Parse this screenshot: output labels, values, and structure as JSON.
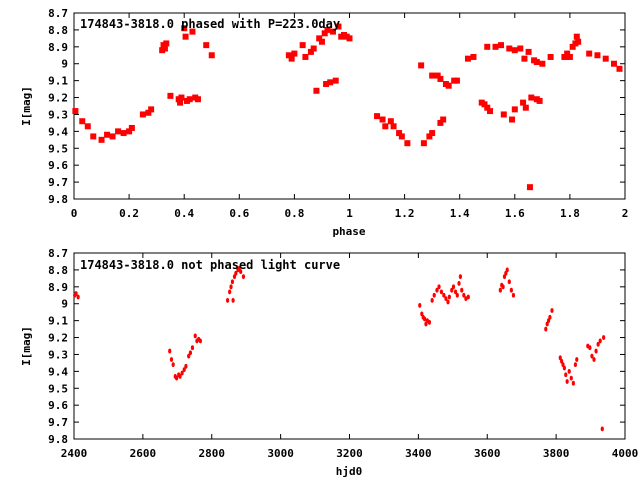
{
  "chart_data": [
    {
      "type": "scatter",
      "title": "174843-3818.0 phased with P=223.0day",
      "xlabel": "phase",
      "ylabel": "I[mag]",
      "xlim": [
        0,
        2
      ],
      "ylim": [
        9.8,
        8.7
      ],
      "y_inverted": true,
      "grid": false,
      "marker": "square",
      "color": "#ff0000",
      "xticks": [
        "0",
        "0.2",
        "0.4",
        "0.6",
        "0.8",
        "1",
        "1.2",
        "1.4",
        "1.6",
        "1.8",
        "2"
      ],
      "yticks": [
        "8.7",
        "8.8",
        "8.9",
        "9",
        "9.1",
        "9.2",
        "9.3",
        "9.4",
        "9.5",
        "9.6",
        "9.7",
        "9.8"
      ],
      "series": [
        {
          "points": [
            [
              0.005,
              9.28
            ],
            [
              0.03,
              9.34
            ],
            [
              0.05,
              9.37
            ],
            [
              0.07,
              9.43
            ],
            [
              0.1,
              9.45
            ],
            [
              0.12,
              9.42
            ],
            [
              0.14,
              9.43
            ],
            [
              0.16,
              9.4
            ],
            [
              0.18,
              9.41
            ],
            [
              0.2,
              9.4
            ],
            [
              0.21,
              9.38
            ],
            [
              0.25,
              9.3
            ],
            [
              0.27,
              9.29
            ],
            [
              0.28,
              9.27
            ],
            [
              0.32,
              8.92
            ],
            [
              0.325,
              8.89
            ],
            [
              0.33,
              8.91
            ],
            [
              0.335,
              8.88
            ],
            [
              0.35,
              9.19
            ],
            [
              0.38,
              9.21
            ],
            [
              0.385,
              9.23
            ],
            [
              0.39,
              9.2
            ],
            [
              0.4,
              8.79
            ],
            [
              0.405,
              8.84
            ],
            [
              0.41,
              9.22
            ],
            [
              0.42,
              9.21
            ],
            [
              0.43,
              8.81
            ],
            [
              0.44,
              9.2
            ],
            [
              0.45,
              9.21
            ],
            [
              0.48,
              8.89
            ],
            [
              0.5,
              8.95
            ],
            [
              0.78,
              8.95
            ],
            [
              0.79,
              8.97
            ],
            [
              0.8,
              8.94
            ],
            [
              0.83,
              8.89
            ],
            [
              0.84,
              8.96
            ],
            [
              0.86,
              8.93
            ],
            [
              0.87,
              8.91
            ],
            [
              0.88,
              9.16
            ],
            [
              0.89,
              8.85
            ],
            [
              0.9,
              8.87
            ],
            [
              0.91,
              8.82
            ],
            [
              0.915,
              9.12
            ],
            [
              0.92,
              8.8
            ],
            [
              0.93,
              9.11
            ],
            [
              0.94,
              8.81
            ],
            [
              0.95,
              9.1
            ],
            [
              0.96,
              8.78
            ],
            [
              0.97,
              8.84
            ],
            [
              0.98,
              8.83
            ],
            [
              0.99,
              8.84
            ],
            [
              1.0,
              8.85
            ],
            [
              1.1,
              9.31
            ],
            [
              1.12,
              9.33
            ],
            [
              1.13,
              9.37
            ],
            [
              1.15,
              9.34
            ],
            [
              1.16,
              9.37
            ],
            [
              1.18,
              9.41
            ],
            [
              1.19,
              9.43
            ],
            [
              1.21,
              9.47
            ],
            [
              1.26,
              9.01
            ],
            [
              1.27,
              9.47
            ],
            [
              1.29,
              9.43
            ],
            [
              1.3,
              9.41
            ],
            [
              1.3,
              9.07
            ],
            [
              1.32,
              9.07
            ],
            [
              1.33,
              9.09
            ],
            [
              1.33,
              9.35
            ],
            [
              1.34,
              9.33
            ],
            [
              1.35,
              9.12
            ],
            [
              1.36,
              9.13
            ],
            [
              1.38,
              9.1
            ],
            [
              1.39,
              9.1
            ],
            [
              1.43,
              8.97
            ],
            [
              1.45,
              8.96
            ],
            [
              1.48,
              9.23
            ],
            [
              1.49,
              9.24
            ],
            [
              1.5,
              9.26
            ],
            [
              1.5,
              8.9
            ],
            [
              1.51,
              9.28
            ],
            [
              1.53,
              8.9
            ],
            [
              1.55,
              8.89
            ],
            [
              1.56,
              9.3
            ],
            [
              1.58,
              8.91
            ],
            [
              1.59,
              9.33
            ],
            [
              1.6,
              9.27
            ],
            [
              1.6,
              8.92
            ],
            [
              1.62,
              8.91
            ],
            [
              1.63,
              9.23
            ],
            [
              1.635,
              8.97
            ],
            [
              1.64,
              9.26
            ],
            [
              1.65,
              8.93
            ],
            [
              1.655,
              9.73
            ],
            [
              1.66,
              9.2
            ],
            [
              1.67,
              8.98
            ],
            [
              1.68,
              8.99
            ],
            [
              1.68,
              9.21
            ],
            [
              1.69,
              9.22
            ],
            [
              1.7,
              9.0
            ],
            [
              1.73,
              8.96
            ],
            [
              1.78,
              8.96
            ],
            [
              1.79,
              8.94
            ],
            [
              1.8,
              8.96
            ],
            [
              1.81,
              8.9
            ],
            [
              1.82,
              8.88
            ],
            [
              1.825,
              8.84
            ],
            [
              1.83,
              8.87
            ],
            [
              1.87,
              8.94
            ],
            [
              1.9,
              8.95
            ],
            [
              1.93,
              8.97
            ],
            [
              1.96,
              9.0
            ],
            [
              1.98,
              9.03
            ]
          ]
        }
      ]
    },
    {
      "type": "scatter",
      "title": "174843-3818.0 not phased light curve",
      "xlabel": "hjd0",
      "ylabel": "I[mag]",
      "xlim": [
        2400,
        4000
      ],
      "ylim": [
        9.8,
        8.7
      ],
      "y_inverted": true,
      "grid": false,
      "marker": "dot",
      "color": "#ff0000",
      "xticks": [
        "2400",
        "2600",
        "2800",
        "3000",
        "3200",
        "3400",
        "3600",
        "3800",
        "4000"
      ],
      "yticks": [
        "8.7",
        "8.8",
        "8.9",
        "9",
        "9.1",
        "9.2",
        "9.3",
        "9.4",
        "9.5",
        "9.6",
        "9.7",
        "9.8"
      ],
      "series": [
        {
          "points": [
            [
              2402,
              8.95
            ],
            [
              2406,
              8.94
            ],
            [
              2412,
              8.96
            ],
            [
              2678,
              9.28
            ],
            [
              2683,
              9.33
            ],
            [
              2688,
              9.36
            ],
            [
              2694,
              9.43
            ],
            [
              2698,
              9.44
            ],
            [
              2704,
              9.42
            ],
            [
              2708,
              9.43
            ],
            [
              2714,
              9.41
            ],
            [
              2720,
              9.39
            ],
            [
              2725,
              9.37
            ],
            [
              2733,
              9.31
            ],
            [
              2738,
              9.29
            ],
            [
              2744,
              9.26
            ],
            [
              2752,
              9.19
            ],
            [
              2757,
              9.22
            ],
            [
              2762,
              9.21
            ],
            [
              2767,
              9.22
            ],
            [
              2846,
              8.98
            ],
            [
              2852,
              8.93
            ],
            [
              2856,
              8.9
            ],
            [
              2860,
              8.87
            ],
            [
              2862,
              8.98
            ],
            [
              2866,
              8.84
            ],
            [
              2870,
              8.82
            ],
            [
              2876,
              8.8
            ],
            [
              2880,
              8.79
            ],
            [
              2884,
              8.81
            ],
            [
              2892,
              8.84
            ],
            [
              3404,
              9.01
            ],
            [
              3410,
              9.06
            ],
            [
              3414,
              9.08
            ],
            [
              3418,
              9.09
            ],
            [
              3422,
              9.12
            ],
            [
              3426,
              9.1
            ],
            [
              3432,
              9.11
            ],
            [
              3440,
              8.98
            ],
            [
              3446,
              8.95
            ],
            [
              3454,
              8.92
            ],
            [
              3460,
              8.9
            ],
            [
              3467,
              8.93
            ],
            [
              3474,
              8.95
            ],
            [
              3480,
              8.97
            ],
            [
              3486,
              8.99
            ],
            [
              3490,
              8.96
            ],
            [
              3497,
              8.92
            ],
            [
              3502,
              8.9
            ],
            [
              3508,
              8.93
            ],
            [
              3513,
              8.95
            ],
            [
              3518,
              8.88
            ],
            [
              3522,
              8.84
            ],
            [
              3526,
              8.92
            ],
            [
              3532,
              8.95
            ],
            [
              3538,
              8.97
            ],
            [
              3545,
              8.96
            ],
            [
              3638,
              8.92
            ],
            [
              3642,
              8.89
            ],
            [
              3646,
              8.9
            ],
            [
              3650,
              8.84
            ],
            [
              3654,
              8.82
            ],
            [
              3658,
              8.8
            ],
            [
              3664,
              8.87
            ],
            [
              3670,
              8.92
            ],
            [
              3676,
              8.95
            ],
            [
              3770,
              9.15
            ],
            [
              3774,
              9.12
            ],
            [
              3778,
              9.1
            ],
            [
              3782,
              9.08
            ],
            [
              3788,
              9.04
            ],
            [
              3812,
              9.32
            ],
            [
              3816,
              9.34
            ],
            [
              3820,
              9.36
            ],
            [
              3824,
              9.38
            ],
            [
              3828,
              9.42
            ],
            [
              3832,
              9.46
            ],
            [
              3838,
              9.4
            ],
            [
              3844,
              9.44
            ],
            [
              3850,
              9.47
            ],
            [
              3856,
              9.36
            ],
            [
              3860,
              9.33
            ],
            [
              3892,
              9.25
            ],
            [
              3898,
              9.26
            ],
            [
              3904,
              9.31
            ],
            [
              3910,
              9.33
            ],
            [
              3916,
              9.28
            ],
            [
              3922,
              9.24
            ],
            [
              3928,
              9.22
            ],
            [
              3934,
              9.74
            ],
            [
              3938,
              9.2
            ]
          ]
        }
      ]
    }
  ]
}
